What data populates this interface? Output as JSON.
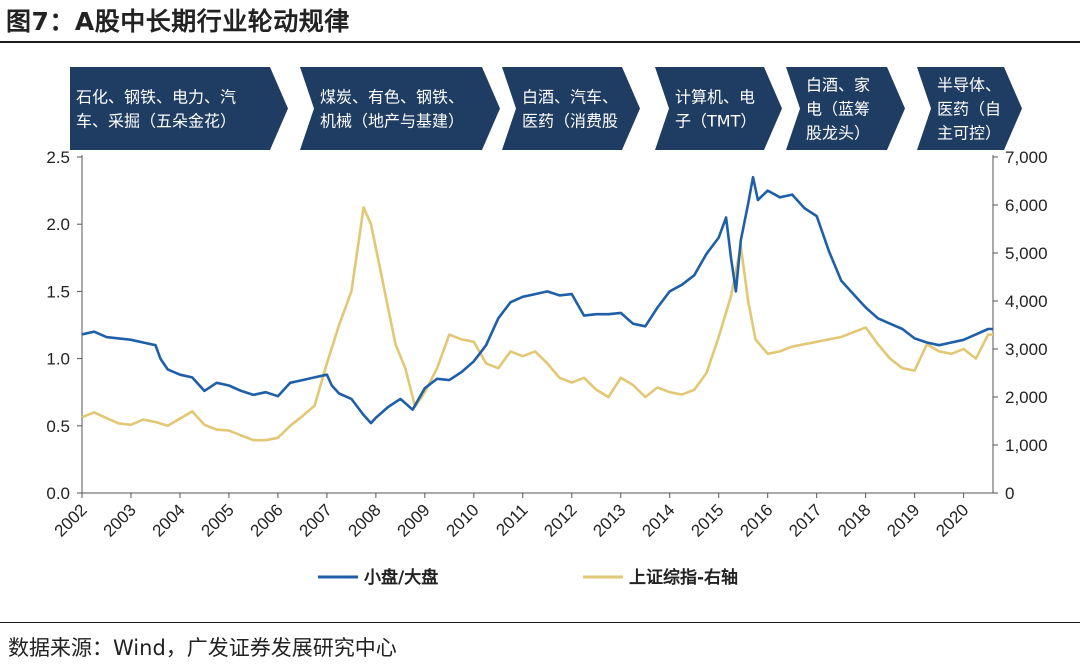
{
  "title": "图7：A股中长期行业轮动规律",
  "source": "数据来源：Wind，广发证券发展研究中心",
  "chart_data": {
    "type": "line",
    "banners": [
      [
        "石化、钢铁、电力、汽",
        "车、采掘（五朵金花）"
      ],
      [
        "煤炭、有色、钢铁、",
        "机械（地产与基建）"
      ],
      [
        "白酒、汽车、",
        "医药（消费股"
      ],
      [
        "计算机、电",
        "子（TMT）"
      ],
      [
        "白酒、家",
        "电（蓝筹",
        "股龙头）"
      ],
      [
        "半导体、",
        "医药（自",
        "主可控）"
      ]
    ],
    "x_ticks": [
      "2002",
      "2003",
      "2004",
      "2005",
      "2006",
      "2007",
      "2008",
      "2009",
      "2010",
      "2011",
      "2012",
      "2013",
      "2014",
      "2015",
      "2016",
      "2017",
      "2018",
      "2019",
      "2020"
    ],
    "y_left": {
      "ticks": [
        "0.0",
        "0.5",
        "1.0",
        "1.5",
        "2.0",
        "2.5"
      ],
      "ylim": [
        0,
        2.5
      ]
    },
    "y_right": {
      "ticks": [
        "0",
        "1,000",
        "2,000",
        "3,000",
        "4,000",
        "5,000",
        "6,000",
        "7,000"
      ],
      "ylim": [
        0,
        7000
      ]
    },
    "xlim": [
      2002.0,
      2020.6
    ],
    "series": [
      {
        "name": "小盘/大盘",
        "axis": "left",
        "color": "#1f5fa8",
        "points": [
          [
            2002.0,
            1.18
          ],
          [
            2002.25,
            1.2
          ],
          [
            2002.5,
            1.16
          ],
          [
            2002.75,
            1.15
          ],
          [
            2003.0,
            1.14
          ],
          [
            2003.25,
            1.12
          ],
          [
            2003.5,
            1.1
          ],
          [
            2003.6,
            1.0
          ],
          [
            2003.75,
            0.92
          ],
          [
            2004.0,
            0.88
          ],
          [
            2004.25,
            0.86
          ],
          [
            2004.5,
            0.76
          ],
          [
            2004.75,
            0.82
          ],
          [
            2005.0,
            0.8
          ],
          [
            2005.25,
            0.76
          ],
          [
            2005.5,
            0.73
          ],
          [
            2005.75,
            0.75
          ],
          [
            2006.0,
            0.72
          ],
          [
            2006.25,
            0.82
          ],
          [
            2006.5,
            0.84
          ],
          [
            2006.75,
            0.86
          ],
          [
            2007.0,
            0.88
          ],
          [
            2007.1,
            0.8
          ],
          [
            2007.25,
            0.74
          ],
          [
            2007.5,
            0.7
          ],
          [
            2007.75,
            0.58
          ],
          [
            2007.9,
            0.52
          ],
          [
            2008.0,
            0.56
          ],
          [
            2008.25,
            0.64
          ],
          [
            2008.5,
            0.7
          ],
          [
            2008.75,
            0.62
          ],
          [
            2009.0,
            0.78
          ],
          [
            2009.25,
            0.85
          ],
          [
            2009.5,
            0.84
          ],
          [
            2009.75,
            0.9
          ],
          [
            2010.0,
            0.98
          ],
          [
            2010.25,
            1.1
          ],
          [
            2010.5,
            1.3
          ],
          [
            2010.75,
            1.42
          ],
          [
            2011.0,
            1.46
          ],
          [
            2011.25,
            1.48
          ],
          [
            2011.5,
            1.5
          ],
          [
            2011.75,
            1.47
          ],
          [
            2012.0,
            1.48
          ],
          [
            2012.25,
            1.32
          ],
          [
            2012.5,
            1.33
          ],
          [
            2012.75,
            1.33
          ],
          [
            2013.0,
            1.34
          ],
          [
            2013.25,
            1.26
          ],
          [
            2013.5,
            1.24
          ],
          [
            2013.75,
            1.38
          ],
          [
            2014.0,
            1.5
          ],
          [
            2014.25,
            1.55
          ],
          [
            2014.5,
            1.62
          ],
          [
            2014.75,
            1.78
          ],
          [
            2015.0,
            1.9
          ],
          [
            2015.15,
            2.05
          ],
          [
            2015.25,
            1.75
          ],
          [
            2015.35,
            1.5
          ],
          [
            2015.45,
            1.88
          ],
          [
            2015.6,
            2.15
          ],
          [
            2015.7,
            2.35
          ],
          [
            2015.8,
            2.18
          ],
          [
            2016.0,
            2.25
          ],
          [
            2016.25,
            2.2
          ],
          [
            2016.5,
            2.22
          ],
          [
            2016.75,
            2.12
          ],
          [
            2017.0,
            2.06
          ],
          [
            2017.25,
            1.8
          ],
          [
            2017.5,
            1.58
          ],
          [
            2017.75,
            1.48
          ],
          [
            2018.0,
            1.38
          ],
          [
            2018.25,
            1.3
          ],
          [
            2018.5,
            1.26
          ],
          [
            2018.75,
            1.22
          ],
          [
            2019.0,
            1.15
          ],
          [
            2019.25,
            1.12
          ],
          [
            2019.5,
            1.1
          ],
          [
            2019.75,
            1.12
          ],
          [
            2020.0,
            1.14
          ],
          [
            2020.25,
            1.18
          ],
          [
            2020.5,
            1.22
          ],
          [
            2020.6,
            1.22
          ]
        ]
      },
      {
        "name": "上证综指-右轴",
        "axis": "right",
        "color": "#e2c774",
        "points": [
          [
            2002.0,
            1580
          ],
          [
            2002.25,
            1680
          ],
          [
            2002.5,
            1560
          ],
          [
            2002.75,
            1450
          ],
          [
            2003.0,
            1420
          ],
          [
            2003.25,
            1530
          ],
          [
            2003.5,
            1480
          ],
          [
            2003.75,
            1400
          ],
          [
            2004.0,
            1550
          ],
          [
            2004.25,
            1700
          ],
          [
            2004.5,
            1420
          ],
          [
            2004.75,
            1320
          ],
          [
            2005.0,
            1300
          ],
          [
            2005.25,
            1200
          ],
          [
            2005.5,
            1100
          ],
          [
            2005.75,
            1100
          ],
          [
            2006.0,
            1150
          ],
          [
            2006.25,
            1400
          ],
          [
            2006.5,
            1600
          ],
          [
            2006.75,
            1820
          ],
          [
            2007.0,
            2700
          ],
          [
            2007.25,
            3500
          ],
          [
            2007.5,
            4200
          ],
          [
            2007.75,
            5950
          ],
          [
            2007.9,
            5600
          ],
          [
            2008.0,
            5100
          ],
          [
            2008.2,
            4100
          ],
          [
            2008.4,
            3100
          ],
          [
            2008.6,
            2600
          ],
          [
            2008.8,
            1800
          ],
          [
            2009.0,
            2100
          ],
          [
            2009.25,
            2600
          ],
          [
            2009.5,
            3300
          ],
          [
            2009.75,
            3200
          ],
          [
            2010.0,
            3150
          ],
          [
            2010.25,
            2700
          ],
          [
            2010.5,
            2600
          ],
          [
            2010.75,
            2950
          ],
          [
            2011.0,
            2850
          ],
          [
            2011.25,
            2950
          ],
          [
            2011.5,
            2700
          ],
          [
            2011.75,
            2400
          ],
          [
            2012.0,
            2300
          ],
          [
            2012.25,
            2400
          ],
          [
            2012.5,
            2150
          ],
          [
            2012.75,
            2000
          ],
          [
            2013.0,
            2400
          ],
          [
            2013.25,
            2250
          ],
          [
            2013.5,
            2000
          ],
          [
            2013.75,
            2200
          ],
          [
            2014.0,
            2100
          ],
          [
            2014.25,
            2050
          ],
          [
            2014.5,
            2150
          ],
          [
            2014.75,
            2500
          ],
          [
            2015.0,
            3250
          ],
          [
            2015.25,
            4100
          ],
          [
            2015.45,
            5150
          ],
          [
            2015.6,
            4000
          ],
          [
            2015.75,
            3200
          ],
          [
            2016.0,
            2900
          ],
          [
            2016.25,
            2950
          ],
          [
            2016.5,
            3050
          ],
          [
            2016.75,
            3100
          ],
          [
            2017.0,
            3150
          ],
          [
            2017.25,
            3200
          ],
          [
            2017.5,
            3250
          ],
          [
            2017.75,
            3350
          ],
          [
            2018.0,
            3450
          ],
          [
            2018.25,
            3100
          ],
          [
            2018.5,
            2800
          ],
          [
            2018.75,
            2600
          ],
          [
            2019.0,
            2550
          ],
          [
            2019.25,
            3100
          ],
          [
            2019.5,
            2950
          ],
          [
            2019.75,
            2900
          ],
          [
            2020.0,
            3000
          ],
          [
            2020.25,
            2800
          ],
          [
            2020.5,
            3300
          ],
          [
            2020.6,
            3300
          ]
        ]
      }
    ]
  }
}
